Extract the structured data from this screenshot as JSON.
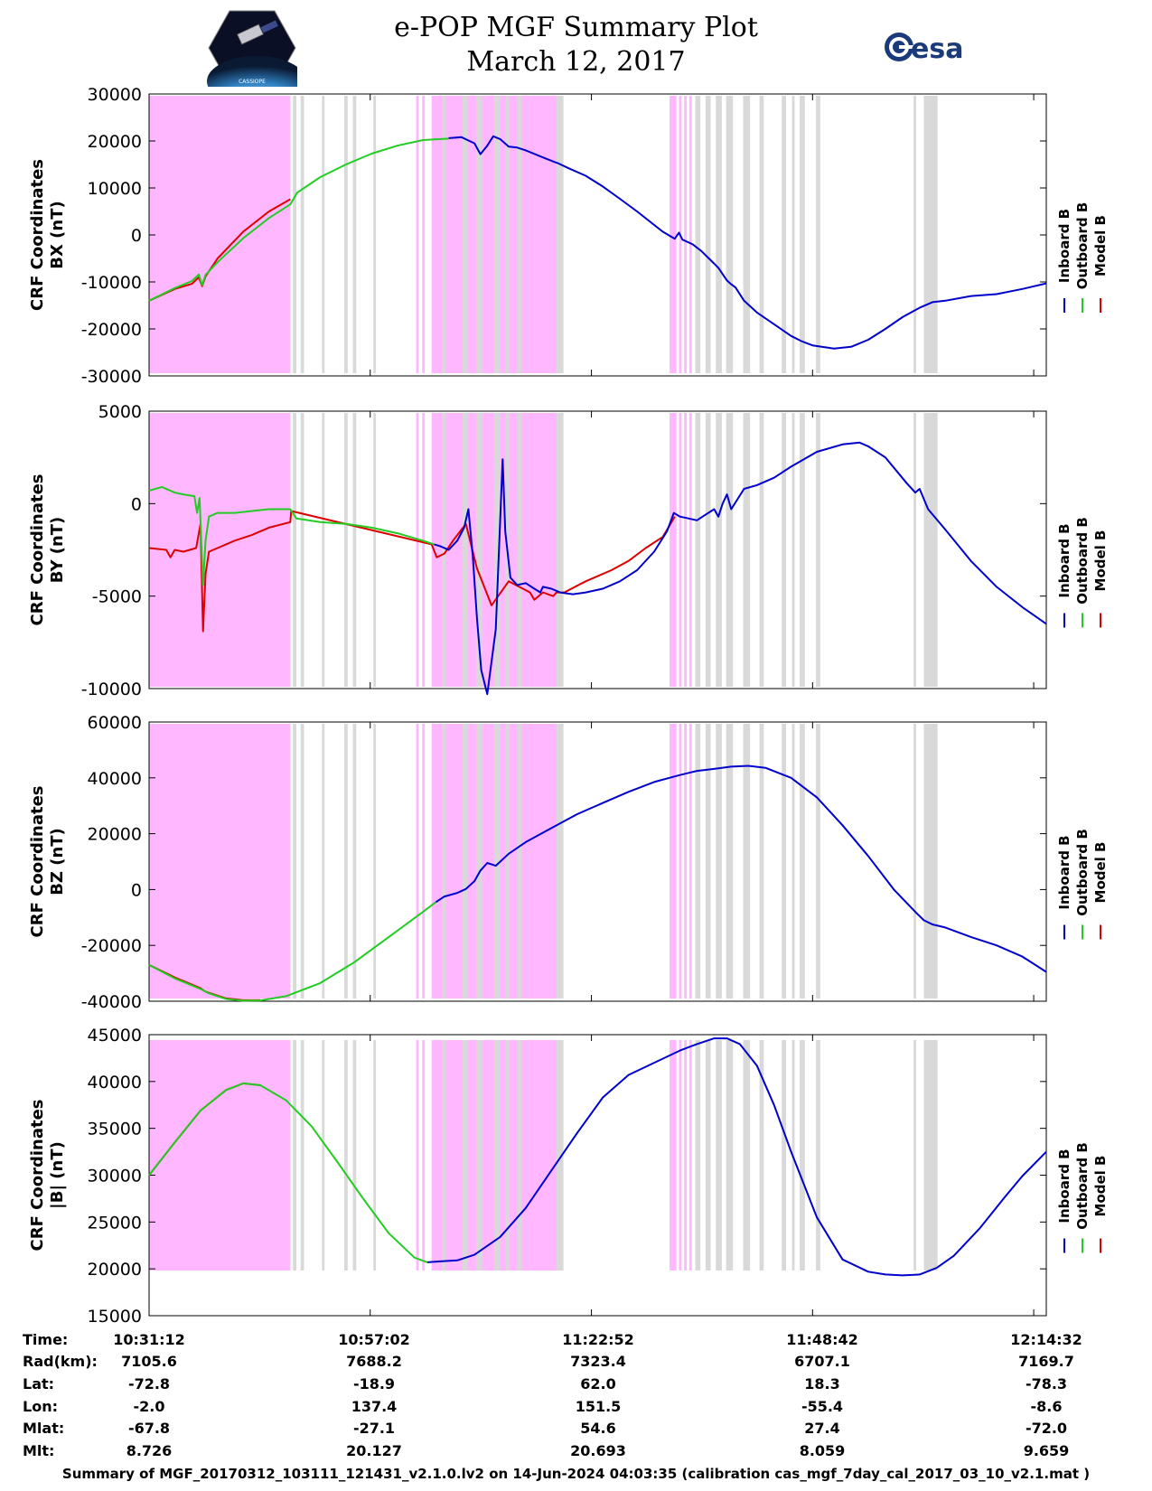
{
  "header": {
    "title": "e-POP MGF Summary Plot",
    "date": "March 12, 2017",
    "left_logo_text": "CASSIOPE",
    "right_logo_text": "esa"
  },
  "colors": {
    "inboard": "#0000cc",
    "outboard": "#22cc22",
    "model": "#dd0000",
    "highlight": "#ffb8ff",
    "marker": "#d9d9d9"
  },
  "legend": [
    {
      "name": "Inboard B",
      "color": "#0000cc"
    },
    {
      "name": "Outboard B",
      "color": "#22cc22"
    },
    {
      "name": "Model B",
      "color": "#dd0000"
    }
  ],
  "time_axis": {
    "range_min": [
      0,
      104.8
    ],
    "tick_values_min": [
      0,
      25.83,
      51.67,
      77.5,
      103.33
    ],
    "labels": [
      "10:31:12",
      "10:57:02",
      "11:22:52",
      "11:48:42",
      "12:14:32"
    ]
  },
  "shading": {
    "highlight_min": [
      [
        0,
        16.5
      ],
      [
        31.2,
        31.5
      ],
      [
        31.9,
        32.2
      ],
      [
        33.0,
        47.6
      ],
      [
        60.8,
        61.6
      ],
      [
        61.9,
        62.2
      ],
      [
        62.5,
        62.8
      ],
      [
        63.1,
        63.4
      ]
    ],
    "marker_min": [
      [
        16.8,
        17.2
      ],
      [
        17.7,
        18.1
      ],
      [
        20.2,
        20.5
      ],
      [
        22.8,
        23.2
      ],
      [
        23.8,
        24.2
      ],
      [
        26.2,
        26.5
      ],
      [
        34.2,
        34.6
      ],
      [
        36.6,
        37.2
      ],
      [
        38.2,
        38.9
      ],
      [
        40.3,
        41.0
      ],
      [
        41.6,
        42.1
      ],
      [
        43.0,
        43.5
      ],
      [
        47.6,
        48.4
      ],
      [
        63.8,
        64.4
      ],
      [
        65.0,
        65.6
      ],
      [
        66.2,
        66.9
      ],
      [
        67.4,
        68.2
      ],
      [
        69.4,
        70.2
      ],
      [
        71.3,
        71.8
      ],
      [
        73.9,
        74.4
      ],
      [
        75.1,
        75.4
      ],
      [
        76.0,
        76.6
      ],
      [
        77.9,
        78.4
      ],
      [
        89.3,
        89.6
      ],
      [
        90.5,
        92.1
      ]
    ]
  },
  "info_rows": [
    {
      "label": "Time:",
      "values": [
        "10:31:12",
        "10:57:02",
        "11:22:52",
        "11:48:42",
        "12:14:32"
      ]
    },
    {
      "label": "Rad(km):",
      "values": [
        "7105.6",
        "7688.2",
        "7323.4",
        "6707.1",
        "7169.7"
      ]
    },
    {
      "label": "Lat:",
      "values": [
        "-72.8",
        "-18.9",
        "62.0",
        "18.3",
        "-78.3"
      ]
    },
    {
      "label": "Lon:",
      "values": [
        "-2.0",
        "137.4",
        "151.5",
        "-55.4",
        "-8.6"
      ]
    },
    {
      "label": "Mlat:",
      "values": [
        "-67.8",
        "-27.1",
        "54.6",
        "27.4",
        "-72.0"
      ]
    },
    {
      "label": "Mlt:",
      "values": [
        "8.726",
        "20.127",
        "20.693",
        "8.059",
        "9.659"
      ]
    }
  ],
  "footer": "Summary of MGF_20170312_103111_121431_v2.1.0.lv2 on 14-Jun-2024 04:03:35 (calibration cas_mgf_7day_cal_2017_03_10_v2.1.mat )",
  "chart_data": [
    {
      "type": "line",
      "ylabel": [
        "CRF Coordinates",
        "BX (nT)"
      ],
      "ylim": [
        -30000,
        30000
      ],
      "yticks": [
        30000,
        20000,
        10000,
        0,
        -10000,
        -20000,
        -30000
      ],
      "ytick_labels": [
        "30000",
        "20000",
        "10000",
        "0",
        "-10000",
        "-20000",
        "-30000"
      ],
      "series": [
        {
          "name": "Model B",
          "color": "#dd0000",
          "x": [
            0,
            3,
            5,
            5.8,
            6.2,
            6.6,
            8,
            11,
            14,
            16.5
          ],
          "y": [
            -14000,
            -11500,
            -10400,
            -9000,
            -10900,
            -8800,
            -5000,
            700,
            5000,
            7600
          ]
        },
        {
          "name": "Outboard B",
          "color": "#22cc22",
          "x": [
            0,
            3,
            5,
            5.8,
            6.2,
            6.6,
            8,
            11,
            14,
            16.5,
            17.3,
            20,
            23,
            26,
            29,
            32,
            35
          ],
          "y": [
            -14000,
            -11300,
            -9800,
            -8400,
            -10700,
            -8500,
            -5800,
            -700,
            3600,
            6500,
            9000,
            12300,
            15000,
            17300,
            19000,
            20200,
            20500
          ]
        },
        {
          "name": "Inboard B",
          "color": "#0000cc",
          "x": [
            35,
            36.5,
            38,
            38.7,
            39.5,
            40.2,
            41,
            42,
            43,
            44,
            46,
            47.4,
            47.7,
            49,
            51,
            53,
            55,
            57,
            60,
            61.4,
            61.9,
            62.3,
            63.5,
            64.5,
            65.5,
            66.5,
            67.5,
            68,
            68.5,
            69.5,
            71,
            73,
            75,
            76.2,
            77.5,
            80,
            82,
            84,
            86,
            88,
            90,
            91.5,
            93,
            96,
            99,
            102,
            104.8
          ],
          "y": [
            20600,
            20800,
            19500,
            17200,
            19000,
            21000,
            20400,
            18800,
            18600,
            18000,
            16500,
            15500,
            15300,
            14200,
            12600,
            10300,
            7700,
            5000,
            700,
            -800,
            500,
            -1000,
            -2000,
            -3400,
            -5200,
            -7000,
            -9700,
            -10500,
            -11200,
            -14000,
            -16500,
            -19000,
            -21500,
            -22600,
            -23500,
            -24200,
            -23800,
            -22300,
            -20000,
            -17500,
            -15500,
            -14300,
            -14000,
            -13000,
            -12600,
            -11500,
            -10300
          ]
        }
      ]
    },
    {
      "type": "line",
      "ylabel": [
        "CRF Coordinates",
        "BY (nT)"
      ],
      "ylim": [
        -10000,
        5000
      ],
      "yticks": [
        5000,
        0,
        -5000,
        -10000
      ],
      "ytick_labels": [
        "5000",
        "0",
        "-5000",
        "-10000"
      ],
      "series": [
        {
          "name": "Model B",
          "color": "#dd0000",
          "x": [
            0,
            2,
            2.5,
            3,
            4,
            5.5,
            6,
            6.3,
            6.6,
            7,
            8,
            10,
            12,
            14,
            16.5,
            16.6,
            33,
            33.6,
            34.5,
            35.5,
            37,
            38.3,
            40,
            42,
            44.5,
            45,
            46,
            47.2,
            47.6,
            48.5,
            51,
            54,
            56,
            58,
            60,
            61.4
          ],
          "y": [
            -2400,
            -2500,
            -2900,
            -2500,
            -2600,
            -2400,
            -1100,
            -6900,
            -3800,
            -2600,
            -2400,
            -2000,
            -1700,
            -1300,
            -1000,
            -400,
            -2200,
            -2900,
            -2700,
            -2000,
            -1100,
            -3500,
            -5500,
            -4200,
            -4800,
            -5200,
            -4800,
            -5000,
            -4800,
            -4800,
            -4200,
            -3600,
            -3100,
            -2400,
            -1800,
            -700
          ]
        },
        {
          "name": "Outboard B",
          "color": "#22cc22",
          "x": [
            0,
            1.5,
            3,
            4,
            5.3,
            5.6,
            5.9,
            6.3,
            6.6,
            7,
            8,
            10,
            12,
            14,
            16.5,
            17.2,
            20,
            23,
            26,
            29,
            32,
            33.3
          ],
          "y": [
            700,
            900,
            600,
            500,
            400,
            -500,
            300,
            -4400,
            -2000,
            -700,
            -500,
            -500,
            -400,
            -300,
            -300,
            -800,
            -1000,
            -1100,
            -1300,
            -1600,
            -2000,
            -2200
          ]
        },
        {
          "name": "Inboard B",
          "color": "#0000cc",
          "x": [
            33.3,
            34,
            35,
            36,
            36.8,
            37.3,
            37.8,
            38.3,
            38.8,
            39.5,
            40.5,
            41.3,
            41.6,
            42.2,
            43,
            44,
            45,
            45.7,
            46,
            47,
            48,
            49.5,
            51,
            53,
            55,
            57,
            59,
            60.5,
            61.3,
            62,
            63,
            64,
            65,
            66,
            66.5,
            67,
            67.5,
            68,
            69.5,
            71,
            73,
            75,
            78,
            81,
            83,
            84,
            86,
            88.5,
            89.5,
            90,
            91,
            93,
            96,
            99,
            102,
            104.8
          ],
          "y": [
            -2200,
            -2300,
            -2500,
            -2000,
            -1300,
            -300,
            -2800,
            -6200,
            -9000,
            -10300,
            -6800,
            2400,
            -1500,
            -4000,
            -4400,
            -4300,
            -4600,
            -4800,
            -4500,
            -4600,
            -4800,
            -4900,
            -4800,
            -4600,
            -4200,
            -3600,
            -2600,
            -1500,
            -500,
            -700,
            -800,
            -900,
            -600,
            -300,
            -700,
            0,
            500,
            -300,
            800,
            1000,
            1400,
            2000,
            2800,
            3200,
            3300,
            3100,
            2500,
            1100,
            600,
            800,
            -300,
            -1400,
            -3100,
            -4500,
            -5600,
            -6500
          ]
        }
      ]
    },
    {
      "type": "line",
      "ylabel": [
        "CRF Coordinates",
        "BZ (nT)"
      ],
      "ylim": [
        -40000,
        60000
      ],
      "yticks": [
        60000,
        40000,
        20000,
        0,
        -20000,
        -40000
      ],
      "ytick_labels": [
        "60000",
        "40000",
        "20000",
        "0",
        "-20000",
        "-40000"
      ],
      "series": [
        {
          "name": "Model B",
          "color": "#dd0000",
          "x": [
            0,
            3,
            6,
            6.5,
            7,
            9,
            11,
            13
          ],
          "y": [
            -27000,
            -31500,
            -35300,
            -36400,
            -37000,
            -39000,
            -39600,
            -39600
          ]
        },
        {
          "name": "Outboard B",
          "color": "#22cc22",
          "x": [
            0,
            3,
            6,
            6.5,
            7,
            9,
            11,
            13,
            16,
            20,
            24,
            28,
            32,
            33.5
          ],
          "y": [
            -27000,
            -31800,
            -35600,
            -36400,
            -37200,
            -39200,
            -39800,
            -39700,
            -38200,
            -33500,
            -26000,
            -17000,
            -8000,
            -4500
          ]
        },
        {
          "name": "Inboard B",
          "color": "#0000cc",
          "x": [
            33.5,
            34.5,
            36,
            37,
            38,
            38.7,
            39.5,
            40.5,
            42,
            44,
            47,
            50,
            53,
            56,
            59,
            62,
            64,
            66,
            68,
            70,
            72,
            75,
            78,
            81,
            84,
            87,
            89.5,
            90.5,
            91.5,
            93,
            96,
            99,
            102,
            104.8
          ],
          "y": [
            -4500,
            -2500,
            -1200,
            200,
            3000,
            6800,
            9500,
            8500,
            12800,
            17000,
            22000,
            27000,
            31000,
            35000,
            38500,
            41000,
            42500,
            43200,
            44000,
            44300,
            43600,
            40000,
            33000,
            23000,
            12000,
            0,
            -8000,
            -11000,
            -12500,
            -13600,
            -17000,
            -20000,
            -24000,
            -29500
          ]
        }
      ]
    },
    {
      "type": "line",
      "ylabel": [
        "CRF Coordinates",
        "|B| (nT)"
      ],
      "ylim": [
        15000,
        45000
      ],
      "yticks": [
        45000,
        40000,
        35000,
        30000,
        25000,
        20000,
        15000
      ],
      "ytick_labels": [
        "45000",
        "40000",
        "35000",
        "30000",
        "25000",
        "20000",
        "15000"
      ],
      "series": [
        {
          "name": "Model B",
          "color": "#dd0000",
          "x": [
            0,
            3,
            6,
            9,
            11,
            13
          ],
          "y": [
            30000,
            33500,
            36900,
            39100,
            39800,
            39600
          ]
        },
        {
          "name": "Outboard B",
          "color": "#22cc22",
          "x": [
            0,
            3,
            6,
            9,
            11,
            13,
            16,
            19,
            22,
            25,
            28,
            31,
            32.5
          ],
          "y": [
            30000,
            33500,
            36900,
            39100,
            39800,
            39600,
            38000,
            35200,
            31400,
            27500,
            23800,
            21200,
            20700
          ]
        },
        {
          "name": "Inboard B",
          "color": "#0000cc",
          "x": [
            32.5,
            34,
            36,
            38,
            41,
            44,
            47,
            50,
            53,
            56,
            59,
            62,
            64,
            66,
            67.5,
            69,
            71,
            73,
            75,
            78,
            81,
            84,
            86,
            88,
            90,
            92,
            94,
            97,
            100,
            102,
            104.8
          ],
          "y": [
            20700,
            20800,
            20900,
            21500,
            23400,
            26500,
            30500,
            34500,
            38300,
            40700,
            42000,
            43300,
            44000,
            44600,
            44600,
            44000,
            41700,
            37500,
            32500,
            25500,
            21000,
            19700,
            19400,
            19300,
            19400,
            20100,
            21400,
            24300,
            27700,
            29900,
            32500
          ]
        }
      ]
    }
  ]
}
